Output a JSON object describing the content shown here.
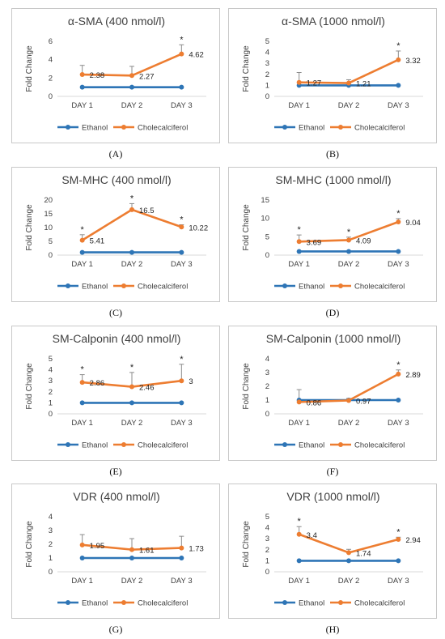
{
  "figure": {
    "panels": [
      {
        "letter": "(A)",
        "title": "α-SMA (400 nmol/l)"
      },
      {
        "letter": "(B)",
        "title": "α-SMA (1000 nmol/l)"
      },
      {
        "letter": "(C)",
        "title": "SM-MHC (400 nmol/l)"
      },
      {
        "letter": "(D)",
        "title": "SM-MHC (1000 nmol/l)"
      },
      {
        "letter": "(E)",
        "title": "SM-Calponin (400 nmol/l)"
      },
      {
        "letter": "(F)",
        "title": "SM-Calponin (1000 nmol/l)"
      },
      {
        "letter": "(G)",
        "title": "VDR (400 nmol/l)"
      },
      {
        "letter": "(H)",
        "title": "VDR (1000 nmol/l)"
      }
    ]
  },
  "colors": {
    "ethanol": "#2e75b6",
    "cholecalciferol": "#ed7d31",
    "axis": "#d9d9d9",
    "text": "#404040"
  },
  "chart_data": [
    {
      "type": "line",
      "title": "α-SMA (400 nmol/l)",
      "ylabel": "Fold Change",
      "categories": [
        "DAY 1",
        "DAY 2",
        "DAY 3"
      ],
      "ylim": [
        0,
        6
      ],
      "yticks": [
        0,
        2,
        4,
        6
      ],
      "grid": false,
      "legend": "bottom",
      "series": [
        {
          "name": "Ethanol",
          "values": [
            1,
            1,
            1
          ]
        },
        {
          "name": "Cholecalciferol",
          "values": [
            2.38,
            2.27,
            4.62
          ],
          "error": [
            1.0,
            1.0,
            1.0
          ],
          "labels": [
            "2.38",
            "2.27",
            "4.62"
          ],
          "significant": [
            false,
            false,
            true
          ]
        }
      ]
    },
    {
      "type": "line",
      "title": "α-SMA (1000 nmol/l)",
      "ylabel": "Fold Change",
      "categories": [
        "DAY 1",
        "DAY 2",
        "DAY 3"
      ],
      "ylim": [
        0,
        5
      ],
      "yticks": [
        0,
        1,
        2,
        3,
        4,
        5
      ],
      "grid": false,
      "legend": "bottom",
      "series": [
        {
          "name": "Ethanol",
          "values": [
            1,
            1,
            1
          ]
        },
        {
          "name": "Cholecalciferol",
          "values": [
            1.27,
            1.21,
            3.32
          ],
          "error": [
            0.9,
            0.3,
            0.8
          ],
          "labels": [
            "1.27",
            "1.21",
            "3.32"
          ],
          "significant": [
            false,
            false,
            true
          ]
        }
      ]
    },
    {
      "type": "line",
      "title": "SM-MHC (400 nmol/l)",
      "ylabel": "Fold Change",
      "categories": [
        "DAY 1",
        "DAY 2",
        "DAY 3"
      ],
      "ylim": [
        0,
        20
      ],
      "yticks": [
        0,
        5,
        10,
        15,
        20
      ],
      "grid": false,
      "legend": "bottom",
      "series": [
        {
          "name": "Ethanol",
          "values": [
            1,
            1,
            1
          ]
        },
        {
          "name": "Cholecalciferol",
          "values": [
            5.41,
            16.5,
            10.22
          ],
          "error": [
            2.0,
            2.2,
            0.8
          ],
          "labels": [
            "5.41",
            "16.5",
            "10.22"
          ],
          "significant": [
            true,
            true,
            true
          ]
        }
      ]
    },
    {
      "type": "line",
      "title": "SM-MHC (1000 nmol/l)",
      "ylabel": "Fold Change",
      "categories": [
        "DAY 1",
        "DAY 2",
        "DAY 3"
      ],
      "ylim": [
        0,
        15
      ],
      "yticks": [
        0,
        5,
        10,
        15
      ],
      "grid": false,
      "legend": "bottom",
      "series": [
        {
          "name": "Ethanol",
          "values": [
            1,
            1,
            1
          ]
        },
        {
          "name": "Cholecalciferol",
          "values": [
            3.69,
            4.09,
            9.04
          ],
          "error": [
            1.8,
            0.8,
            0.9
          ],
          "labels": [
            "3.69",
            "4.09",
            "9.04"
          ],
          "significant": [
            true,
            true,
            true
          ]
        }
      ]
    },
    {
      "type": "line",
      "title": "SM-Calponin (400 nmol/l)",
      "ylabel": "Fold Change",
      "categories": [
        "DAY 1",
        "DAY 2",
        "DAY 3"
      ],
      "ylim": [
        0,
        5
      ],
      "yticks": [
        0,
        1,
        2,
        3,
        4,
        5
      ],
      "grid": false,
      "legend": "bottom",
      "series": [
        {
          "name": "Ethanol",
          "values": [
            1,
            1,
            1
          ]
        },
        {
          "name": "Cholecalciferol",
          "values": [
            2.86,
            2.46,
            3
          ],
          "error": [
            0.7,
            1.3,
            1.5
          ],
          "labels": [
            "2.86",
            "2.46",
            "3"
          ],
          "significant": [
            true,
            true,
            true
          ]
        }
      ]
    },
    {
      "type": "line",
      "title": "SM-Calponin (1000 nmol/l)",
      "ylabel": "Fold Change",
      "categories": [
        "DAY 1",
        "DAY 2",
        "DAY 3"
      ],
      "ylim": [
        0,
        4
      ],
      "yticks": [
        0,
        1,
        2,
        3,
        4
      ],
      "grid": false,
      "legend": "bottom",
      "series": [
        {
          "name": "Ethanol",
          "values": [
            1,
            1,
            1
          ]
        },
        {
          "name": "Cholecalciferol",
          "values": [
            0.86,
            0.97,
            2.89
          ],
          "error": [
            0.9,
            0.15,
            0.3
          ],
          "labels": [
            "0.86",
            "0.97",
            "2.89"
          ],
          "significant": [
            false,
            false,
            true
          ]
        }
      ]
    },
    {
      "type": "line",
      "title": "VDR (400 nmol/l)",
      "ylabel": "Fold Change",
      "categories": [
        "DAY 1",
        "DAY 2",
        "DAY 3"
      ],
      "ylim": [
        0,
        4
      ],
      "yticks": [
        0,
        1,
        2,
        3,
        4
      ],
      "grid": false,
      "legend": "bottom",
      "series": [
        {
          "name": "Ethanol",
          "values": [
            1,
            1,
            1
          ]
        },
        {
          "name": "Cholecalciferol",
          "values": [
            1.95,
            1.61,
            1.73
          ],
          "error": [
            0.75,
            0.8,
            0.85
          ],
          "labels": [
            "1.95",
            "1.61",
            "1.73"
          ],
          "significant": [
            false,
            false,
            false
          ]
        }
      ]
    },
    {
      "type": "line",
      "title": "VDR (1000 nmol/l)",
      "ylabel": "Fold Change",
      "categories": [
        "DAY 1",
        "DAY 2",
        "DAY 3"
      ],
      "ylim": [
        0,
        5
      ],
      "yticks": [
        0,
        1,
        2,
        3,
        4,
        5
      ],
      "grid": false,
      "legend": "bottom",
      "series": [
        {
          "name": "Ethanol",
          "values": [
            1,
            1,
            1
          ]
        },
        {
          "name": "Cholecalciferol",
          "values": [
            3.4,
            1.74,
            2.94
          ],
          "error": [
            0.7,
            0.3,
            0.2
          ],
          "labels": [
            "3.4",
            "1.74",
            "2.94"
          ],
          "significant": [
            true,
            false,
            true
          ]
        }
      ]
    }
  ]
}
